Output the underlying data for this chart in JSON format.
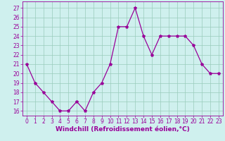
{
  "x": [
    0,
    1,
    2,
    3,
    4,
    5,
    6,
    7,
    8,
    9,
    10,
    11,
    12,
    13,
    14,
    15,
    16,
    17,
    18,
    19,
    20,
    21,
    22,
    23
  ],
  "y": [
    21,
    19,
    18,
    17,
    16,
    16,
    17,
    16,
    18,
    19,
    21,
    25,
    25,
    27,
    24,
    22,
    24,
    24,
    24,
    24,
    23,
    21,
    20,
    20
  ],
  "line_color": "#990099",
  "marker": "*",
  "marker_size": 3,
  "bg_color": "#cff0ee",
  "grid_color": "#99ccbb",
  "xlabel": "Windchill (Refroidissement éolien,°C)",
  "xlabel_color": "#990099",
  "ylabel_ticks": [
    16,
    17,
    18,
    19,
    20,
    21,
    22,
    23,
    24,
    25,
    26,
    27
  ],
  "xticks": [
    0,
    1,
    2,
    3,
    4,
    5,
    6,
    7,
    8,
    9,
    10,
    11,
    12,
    13,
    14,
    15,
    16,
    17,
    18,
    19,
    20,
    21,
    22,
    23
  ],
  "ylim": [
    15.5,
    27.7
  ],
  "xlim": [
    -0.5,
    23.5
  ],
  "tick_color": "#990099",
  "tick_fontsize": 5.5,
  "xlabel_fontsize": 6.5
}
